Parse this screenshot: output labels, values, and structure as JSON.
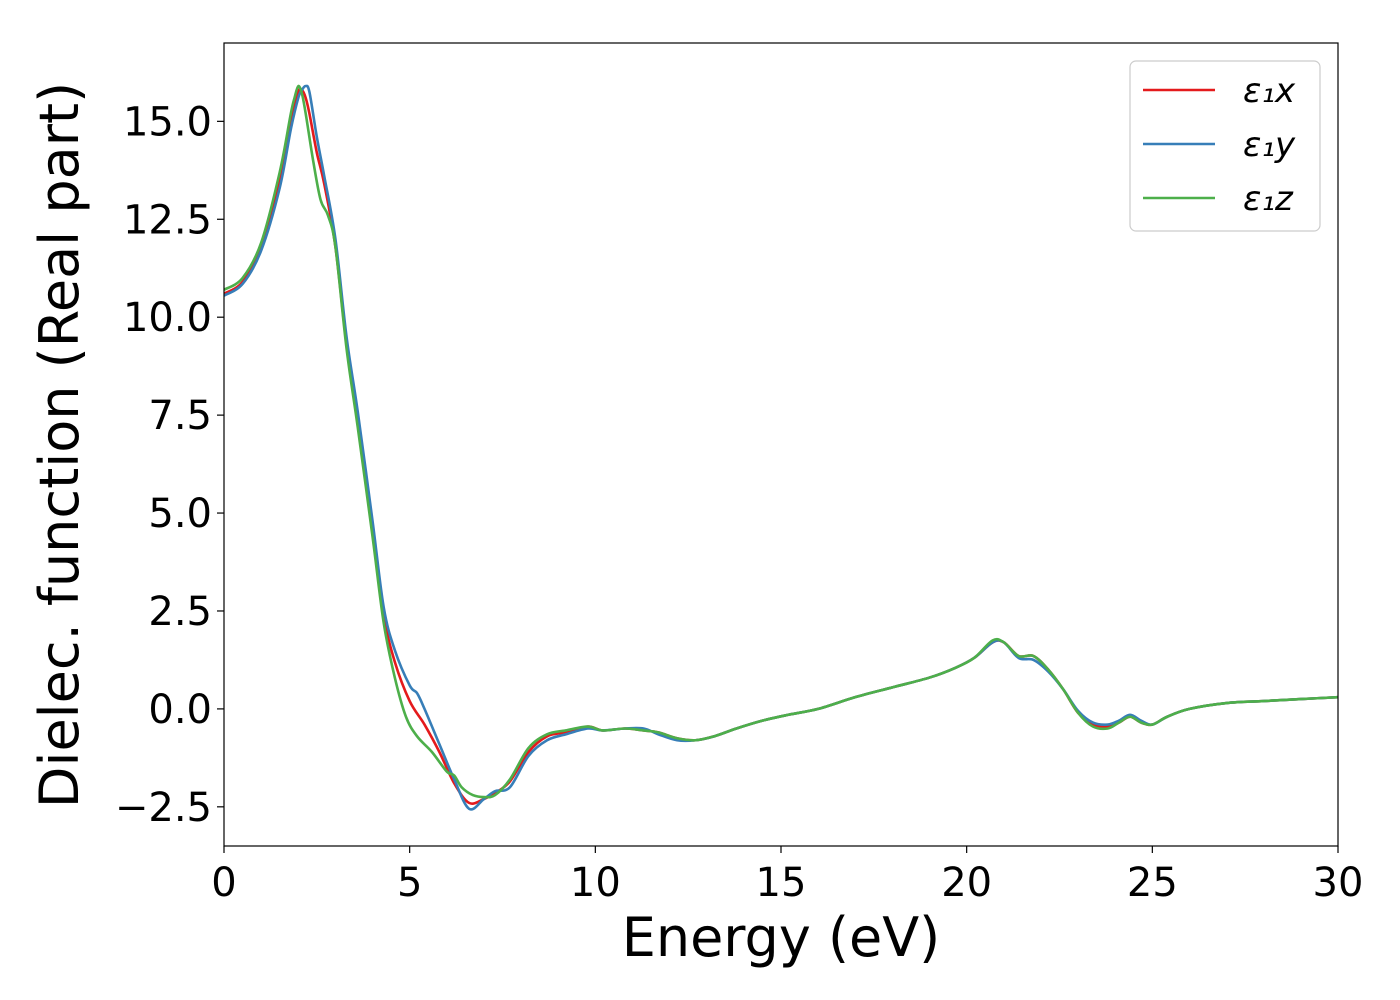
{
  "chart_data": {
    "type": "line",
    "title": "",
    "xlabel": "Energy (eV)",
    "ylabel": "Dielec. function (Real part)",
    "xlim": [
      0,
      30
    ],
    "ylim": [
      -3.5,
      17.0
    ],
    "xticks": [
      0,
      5,
      10,
      15,
      20,
      25,
      30
    ],
    "xtick_labels": [
      "0",
      "5",
      "10",
      "15",
      "20",
      "25",
      "30"
    ],
    "yticks": [
      -2.5,
      0.0,
      2.5,
      5.0,
      7.5,
      10.0,
      12.5,
      15.0
    ],
    "ytick_labels": [
      "−2.5",
      "0.0",
      "2.5",
      "5.0",
      "7.5",
      "10.0",
      "12.5",
      "15.0"
    ],
    "grid": false,
    "legend_position": "top-right",
    "series": [
      {
        "name": "ε₁x",
        "color": "#e41a1c",
        "x": [
          0,
          0.5,
          1.0,
          1.5,
          1.8,
          2.0,
          2.1,
          2.2,
          2.3,
          2.5,
          2.7,
          3.0,
          3.3,
          3.6,
          4.0,
          4.3,
          4.6,
          5.0,
          5.4,
          5.8,
          6.2,
          6.6,
          7.0,
          7.3,
          7.7,
          8.2,
          8.7,
          9.2,
          9.8,
          10.2,
          10.8,
          11.3,
          11.7,
          12.2,
          12.7,
          13.2,
          13.8,
          14.5,
          15.2,
          16.0,
          17.0,
          18.0,
          19.0,
          19.7,
          20.2,
          20.7,
          21.0,
          21.4,
          21.8,
          22.2,
          22.6,
          23.0,
          23.4,
          23.8,
          24.1,
          24.4,
          24.7,
          25.0,
          25.4,
          26.0,
          27.0,
          28.0,
          29.0,
          30.0
        ],
        "y": [
          10.6,
          10.9,
          11.8,
          13.5,
          15.0,
          15.75,
          15.8,
          15.6,
          15.2,
          14.2,
          13.4,
          11.8,
          9.3,
          7.4,
          4.6,
          2.4,
          1.2,
          0.2,
          -0.4,
          -1.1,
          -1.9,
          -2.4,
          -2.3,
          -2.15,
          -1.85,
          -1.1,
          -0.7,
          -0.6,
          -0.45,
          -0.55,
          -0.5,
          -0.55,
          -0.6,
          -0.75,
          -0.8,
          -0.7,
          -0.5,
          -0.3,
          -0.15,
          0.0,
          0.3,
          0.55,
          0.8,
          1.05,
          1.3,
          1.7,
          1.7,
          1.35,
          1.35,
          1.0,
          0.5,
          -0.1,
          -0.4,
          -0.45,
          -0.35,
          -0.2,
          -0.35,
          -0.4,
          -0.2,
          0.0,
          0.15,
          0.2,
          0.25,
          0.3
        ]
      },
      {
        "name": "ε₁y",
        "color": "#377eb8",
        "x": [
          0,
          0.5,
          1.0,
          1.5,
          1.8,
          2.0,
          2.1,
          2.2,
          2.3,
          2.5,
          2.7,
          3.0,
          3.3,
          3.6,
          4.0,
          4.3,
          4.6,
          5.0,
          5.2,
          5.4,
          5.8,
          6.2,
          6.6,
          7.0,
          7.3,
          7.7,
          8.2,
          8.7,
          9.2,
          9.8,
          10.2,
          10.8,
          11.3,
          11.7,
          12.2,
          12.7,
          13.2,
          13.8,
          14.5,
          15.2,
          16.0,
          17.0,
          18.0,
          19.0,
          19.7,
          20.2,
          20.7,
          21.0,
          21.4,
          21.8,
          22.2,
          22.6,
          23.0,
          23.4,
          23.8,
          24.1,
          24.4,
          24.7,
          25.0,
          25.4,
          26.0,
          27.0,
          28.0,
          29.0,
          30.0
        ],
        "y": [
          10.55,
          10.85,
          11.7,
          13.3,
          14.8,
          15.6,
          15.8,
          15.9,
          15.75,
          14.6,
          13.6,
          12.0,
          9.5,
          7.6,
          4.8,
          2.6,
          1.5,
          0.6,
          0.4,
          0.0,
          -0.9,
          -1.8,
          -2.55,
          -2.3,
          -2.1,
          -2.0,
          -1.2,
          -0.8,
          -0.65,
          -0.5,
          -0.55,
          -0.5,
          -0.5,
          -0.65,
          -0.8,
          -0.8,
          -0.7,
          -0.5,
          -0.3,
          -0.15,
          0.0,
          0.3,
          0.55,
          0.8,
          1.05,
          1.3,
          1.7,
          1.7,
          1.3,
          1.25,
          0.95,
          0.5,
          -0.05,
          -0.35,
          -0.4,
          -0.3,
          -0.15,
          -0.3,
          -0.4,
          -0.2,
          0.0,
          0.15,
          0.2,
          0.25,
          0.3
        ]
      },
      {
        "name": "ε₁z",
        "color": "#4daf4a",
        "x": [
          0,
          0.5,
          1.0,
          1.5,
          1.8,
          1.9,
          2.0,
          2.1,
          2.2,
          2.4,
          2.6,
          2.8,
          3.0,
          3.3,
          3.6,
          4.0,
          4.3,
          4.6,
          4.9,
          5.2,
          5.6,
          6.0,
          6.2,
          6.4,
          6.7,
          7.0,
          7.3,
          7.7,
          8.2,
          8.7,
          9.2,
          9.8,
          10.2,
          10.8,
          11.3,
          11.7,
          12.2,
          12.7,
          13.2,
          13.8,
          14.5,
          15.2,
          16.0,
          17.0,
          18.0,
          19.0,
          19.7,
          20.2,
          20.7,
          21.0,
          21.4,
          21.8,
          22.2,
          22.6,
          23.0,
          23.4,
          23.8,
          24.1,
          24.4,
          24.7,
          25.0,
          25.4,
          26.0,
          27.0,
          28.0,
          29.0,
          30.0
        ],
        "y": [
          10.7,
          11.0,
          11.9,
          13.7,
          15.2,
          15.6,
          15.9,
          15.7,
          15.2,
          14.0,
          13.0,
          12.6,
          11.8,
          9.2,
          7.2,
          4.4,
          2.2,
          0.8,
          -0.2,
          -0.7,
          -1.1,
          -1.6,
          -1.7,
          -2.0,
          -2.2,
          -2.25,
          -2.2,
          -1.8,
          -1.0,
          -0.65,
          -0.55,
          -0.45,
          -0.55,
          -0.5,
          -0.55,
          -0.6,
          -0.75,
          -0.8,
          -0.7,
          -0.5,
          -0.3,
          -0.15,
          0.0,
          0.3,
          0.55,
          0.8,
          1.05,
          1.3,
          1.75,
          1.7,
          1.35,
          1.35,
          1.0,
          0.5,
          -0.1,
          -0.45,
          -0.5,
          -0.35,
          -0.2,
          -0.35,
          -0.4,
          -0.2,
          0.0,
          0.15,
          0.2,
          0.25,
          0.3
        ]
      }
    ]
  }
}
